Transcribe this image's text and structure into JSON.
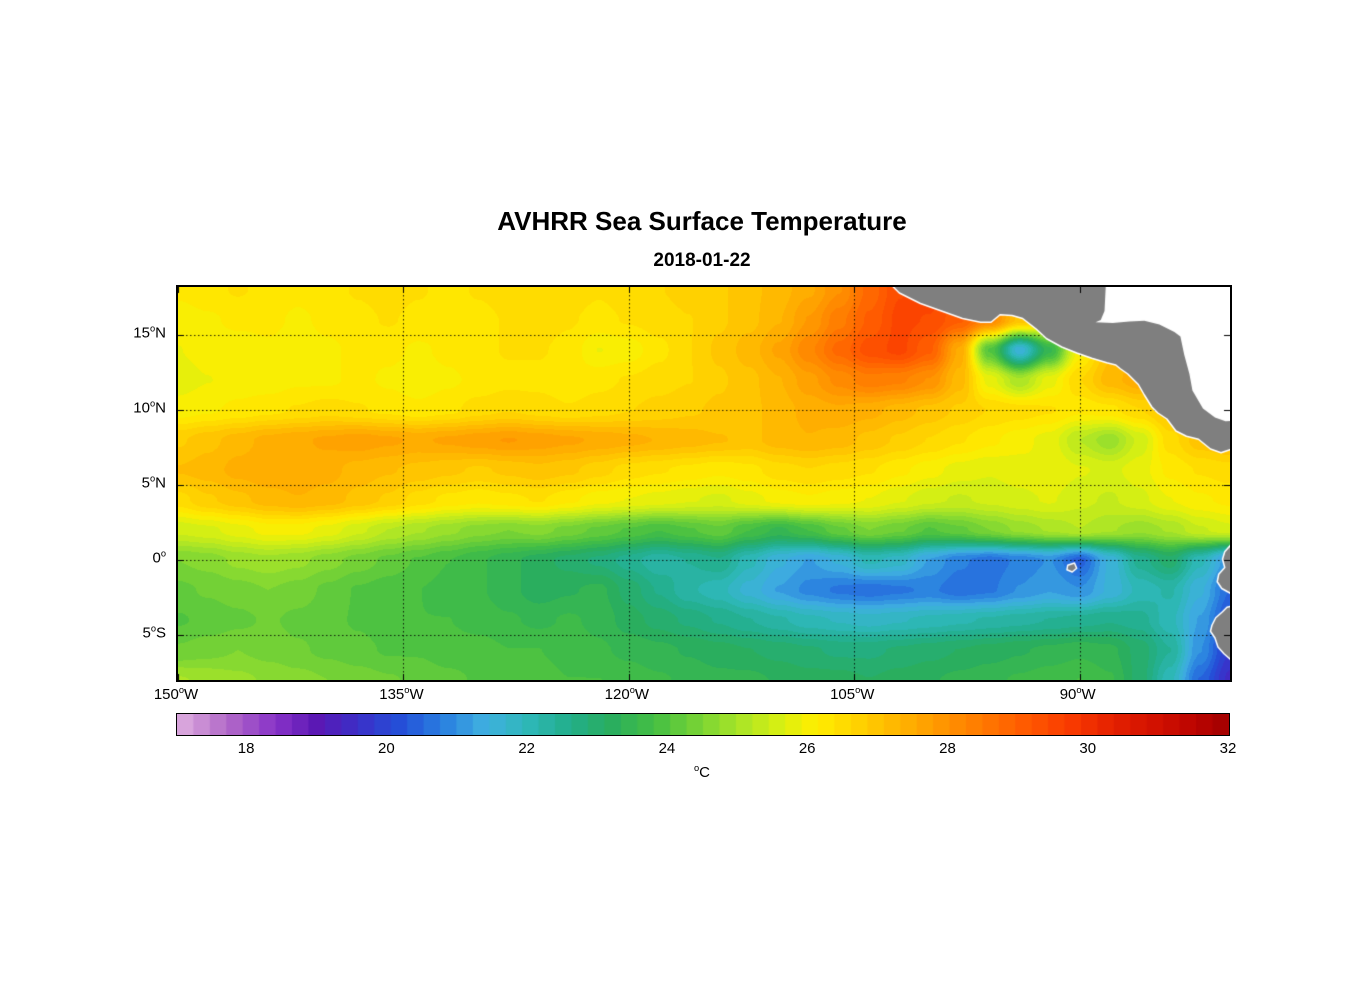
{
  "chart_data": {
    "type": "heatmap",
    "title": "AVHRR Sea Surface Temperature",
    "subtitle": "2018-01-22",
    "lon_range": [
      -150,
      -80
    ],
    "lat_range": [
      -8,
      18.2
    ],
    "x_ticks": [
      {
        "lon": -150,
        "label": "150°W"
      },
      {
        "lon": -135,
        "label": "135°W"
      },
      {
        "lon": -120,
        "label": "120°W"
      },
      {
        "lon": -105,
        "label": "105°W"
      },
      {
        "lon": -90,
        "label": "90°W"
      }
    ],
    "y_ticks": [
      {
        "lat": 15,
        "label": "15°N"
      },
      {
        "lat": 10,
        "label": "10°N"
      },
      {
        "lat": 5,
        "label": "5°N"
      },
      {
        "lat": 0,
        "label": "0°"
      },
      {
        "lat": -5,
        "label": "5°S"
      }
    ],
    "gridline_lats": [
      15,
      10,
      5,
      0,
      -5
    ],
    "gridline_lons": [
      -135,
      -120,
      -105,
      -90
    ],
    "grid_style": "dotted",
    "land_color": "#7F7F7F",
    "coast_color": "#FFFFFF",
    "sea_mask_color": "#FFFFFF",
    "colorbar": {
      "min": 17,
      "max": 32,
      "levels": 64,
      "ticks": [
        18,
        20,
        22,
        24,
        26,
        28,
        30,
        32
      ],
      "unit": "°C",
      "stops": [
        [
          17.0,
          "#E0B0E0"
        ],
        [
          17.7,
          "#B36BC8"
        ],
        [
          18.4,
          "#8833C8"
        ],
        [
          19.0,
          "#5A18B4"
        ],
        [
          19.6,
          "#3A30C8"
        ],
        [
          20.2,
          "#2450D8"
        ],
        [
          20.8,
          "#2A80E0"
        ],
        [
          21.4,
          "#3FB0E0"
        ],
        [
          22.0,
          "#2EB8B8"
        ],
        [
          22.6,
          "#22AE8A"
        ],
        [
          23.2,
          "#2AAE5E"
        ],
        [
          23.8,
          "#44BE44"
        ],
        [
          24.4,
          "#74D236"
        ],
        [
          25.0,
          "#A8E428"
        ],
        [
          25.6,
          "#D8F012"
        ],
        [
          26.1,
          "#FFEE00"
        ],
        [
          26.7,
          "#FFD200"
        ],
        [
          27.3,
          "#FFB400"
        ],
        [
          27.9,
          "#FF9600"
        ],
        [
          28.5,
          "#FF7800"
        ],
        [
          29.1,
          "#FF5A00"
        ],
        [
          29.7,
          "#FA3C00"
        ],
        [
          30.3,
          "#E62200"
        ],
        [
          31.0,
          "#D01000"
        ],
        [
          31.5,
          "#BC0400"
        ],
        [
          32.0,
          "#A00000"
        ]
      ]
    },
    "grid": {
      "lon_start": -150,
      "lon_step": 2,
      "lat_start": 18,
      "lat_step": -2,
      "lats_order": "north-to-south",
      "sst_c": [
        [
          26.2,
          26.3,
          26.4,
          26.3,
          26.2,
          26.3,
          26.4,
          26.5,
          26.4,
          26.3,
          26.4,
          26.5,
          26.6,
          26.5,
          26.4,
          26.5,
          26.6,
          26.7,
          26.8,
          27.0,
          27.2,
          27.5,
          28.0,
          28.8,
          29.4,
          29.6,
          29.3,
          28.8,
          28.2,
          27.8,
          27.5,
          27.3,
          27.2,
          27.0,
          26.8,
          26.6
        ],
        [
          26.0,
          26.1,
          26.2,
          26.2,
          26.1,
          26.2,
          26.3,
          26.4,
          26.3,
          26.2,
          26.3,
          26.4,
          26.5,
          26.4,
          26.3,
          26.4,
          26.5,
          26.6,
          26.8,
          27.0,
          27.3,
          27.8,
          28.4,
          29.0,
          29.5,
          29.4,
          29.0,
          28.2,
          27.0,
          26.5,
          26.8,
          27.0,
          27.2,
          27.0,
          26.8,
          26.6
        ],
        [
          25.9,
          26.0,
          26.0,
          26.1,
          26.0,
          26.1,
          26.2,
          26.2,
          26.1,
          26.2,
          26.3,
          26.4,
          26.4,
          26.3,
          25.9,
          26.0,
          26.3,
          26.6,
          26.9,
          27.2,
          27.6,
          28.2,
          28.8,
          29.3,
          29.5,
          29.0,
          27.5,
          24.0,
          21.5,
          23.5,
          26.0,
          27.0,
          27.3,
          27.2,
          27.0,
          26.8
        ],
        [
          25.8,
          25.9,
          26.0,
          26.0,
          26.1,
          26.1,
          26.2,
          26.1,
          26.0,
          26.1,
          26.2,
          26.3,
          26.3,
          26.2,
          26.3,
          26.4,
          26.5,
          26.6,
          26.8,
          27.0,
          27.3,
          27.7,
          28.1,
          28.4,
          28.3,
          28.0,
          27.2,
          25.8,
          25.0,
          25.8,
          26.6,
          27.2,
          27.5,
          27.4,
          27.2,
          27.0
        ],
        [
          26.0,
          26.1,
          26.2,
          26.3,
          26.4,
          26.5,
          26.4,
          26.3,
          26.2,
          26.3,
          26.5,
          26.6,
          26.5,
          26.4,
          26.5,
          26.6,
          26.7,
          26.8,
          26.9,
          27.0,
          27.2,
          27.4,
          27.5,
          27.4,
          27.2,
          27.0,
          26.8,
          26.6,
          26.5,
          26.4,
          26.2,
          26.3,
          26.6,
          27.0,
          27.3,
          27.5
        ],
        [
          26.8,
          27.0,
          27.2,
          27.4,
          27.5,
          27.6,
          27.7,
          27.6,
          27.5,
          27.6,
          27.7,
          27.8,
          27.7,
          27.6,
          27.5,
          27.4,
          27.3,
          27.2,
          27.1,
          27.0,
          27.2,
          27.3,
          27.2,
          27.0,
          26.8,
          26.6,
          26.4,
          26.2,
          26.0,
          25.8,
          25.2,
          24.8,
          25.5,
          26.5,
          27.0,
          27.2
        ],
        [
          27.1,
          27.2,
          27.4,
          27.5,
          27.5,
          27.4,
          27.2,
          27.1,
          27.0,
          26.9,
          26.8,
          26.9,
          27.0,
          26.9,
          26.7,
          26.5,
          26.4,
          26.3,
          26.2,
          26.3,
          26.5,
          26.6,
          26.5,
          26.4,
          26.2,
          26.0,
          25.8,
          25.7,
          25.8,
          25.9,
          25.7,
          25.6,
          25.8,
          26.2,
          26.4,
          26.5
        ],
        [
          26.5,
          26.8,
          27.0,
          27.2,
          27.3,
          27.2,
          27.0,
          26.8,
          26.5,
          26.3,
          26.2,
          26.3,
          26.4,
          26.2,
          26.0,
          25.9,
          25.8,
          25.7,
          25.6,
          25.8,
          26.0,
          26.1,
          26.0,
          25.9,
          25.7,
          25.5,
          25.4,
          25.5,
          25.6,
          25.7,
          25.5,
          25.4,
          25.6,
          25.9,
          26.1,
          26.2
        ],
        [
          25.5,
          25.6,
          25.8,
          26.0,
          26.0,
          25.8,
          25.5,
          25.2,
          25.0,
          24.8,
          24.6,
          24.5,
          24.6,
          24.4,
          24.2,
          24.0,
          23.8,
          24.0,
          24.2,
          23.8,
          23.5,
          23.8,
          24.2,
          24.5,
          24.3,
          24.0,
          24.2,
          24.5,
          24.8,
          25.0,
          25.2,
          25.0,
          24.8,
          25.0,
          25.4,
          25.6
        ],
        [
          24.5,
          24.6,
          24.8,
          24.9,
          24.8,
          24.6,
          24.4,
          24.2,
          24.0,
          23.8,
          23.6,
          23.4,
          23.2,
          23.0,
          22.8,
          22.5,
          22.2,
          22.4,
          22.6,
          22.0,
          21.5,
          21.2,
          21.5,
          22.0,
          21.8,
          21.2,
          20.8,
          20.6,
          20.8,
          21.0,
          20.4,
          21.5,
          22.5,
          23.0,
          22.0,
          21.0
        ],
        [
          24.2,
          24.3,
          24.4,
          24.5,
          24.4,
          24.2,
          24.0,
          23.9,
          23.8,
          23.7,
          23.6,
          23.4,
          23.2,
          23.3,
          23.4,
          23.0,
          22.6,
          22.2,
          22.0,
          21.6,
          21.2,
          20.9,
          20.7,
          20.6,
          20.7,
          20.8,
          20.6,
          20.7,
          21.0,
          21.2,
          21.0,
          21.5,
          22.0,
          22.2,
          21.5,
          20.5
        ],
        [
          24.0,
          24.1,
          24.2,
          24.3,
          24.2,
          24.1,
          24.0,
          23.9,
          23.8,
          23.8,
          23.7,
          23.6,
          23.5,
          23.6,
          23.5,
          23.2,
          23.0,
          22.8,
          22.6,
          22.4,
          22.2,
          22.0,
          21.9,
          21.8,
          21.9,
          22.0,
          22.1,
          22.2,
          22.3,
          22.4,
          22.5,
          22.6,
          22.5,
          22.0,
          21.2,
          20.2
        ],
        [
          24.3,
          24.4,
          24.5,
          24.4,
          24.3,
          24.2,
          24.1,
          24.0,
          24.0,
          23.9,
          23.9,
          23.8,
          23.8,
          23.7,
          23.6,
          23.5,
          23.4,
          23.3,
          23.2,
          23.1,
          23.0,
          22.9,
          22.8,
          22.8,
          22.9,
          23.0,
          23.1,
          23.2,
          23.3,
          23.4,
          23.5,
          23.4,
          23.0,
          22.4,
          21.0,
          19.8
        ],
        [
          25.0,
          24.9,
          24.8,
          24.7,
          24.6,
          24.5,
          24.4,
          24.3,
          24.2,
          24.1,
          24.0,
          23.9,
          23.9,
          23.8,
          23.8,
          23.7,
          23.6,
          23.5,
          23.4,
          23.4,
          23.3,
          23.2,
          23.2,
          23.1,
          23.2,
          23.3,
          23.4,
          23.5,
          23.6,
          23.7,
          23.8,
          23.6,
          23.0,
          22.0,
          20.5,
          19.5
        ]
      ]
    },
    "land_polygons": [
      {
        "name": "mexico-central-america",
        "type": "land",
        "points": [
          [
            -102.8,
            18.6
          ],
          [
            -102.0,
            17.8
          ],
          [
            -100.6,
            17.1
          ],
          [
            -99.2,
            16.6
          ],
          [
            -97.8,
            16.1
          ],
          [
            -96.6,
            15.85
          ],
          [
            -95.9,
            15.85
          ],
          [
            -95.3,
            16.35
          ],
          [
            -94.5,
            16.3
          ],
          [
            -93.8,
            16.1
          ],
          [
            -92.9,
            15.4
          ],
          [
            -92.2,
            14.75
          ],
          [
            -91.2,
            14.2
          ],
          [
            -90.2,
            13.8
          ],
          [
            -89.2,
            13.45
          ],
          [
            -88.2,
            13.15
          ],
          [
            -87.6,
            13.0
          ],
          [
            -87.3,
            12.75
          ],
          [
            -86.8,
            12.4
          ],
          [
            -86.1,
            11.7
          ],
          [
            -85.7,
            11.0
          ],
          [
            -85.2,
            10.2
          ],
          [
            -84.8,
            9.8
          ],
          [
            -84.2,
            9.4
          ],
          [
            -83.6,
            8.6
          ],
          [
            -82.9,
            8.25
          ],
          [
            -82.1,
            8.05
          ],
          [
            -81.3,
            7.4
          ],
          [
            -80.6,
            7.15
          ],
          [
            -80.0,
            7.35
          ],
          [
            -79.3,
            7.6
          ],
          [
            -78.8,
            8.2
          ],
          [
            -78.8,
            19.5
          ]
        ]
      },
      {
        "name": "caribbean-sea",
        "type": "sea-mask",
        "points": [
          [
            -88.25,
            18.6
          ],
          [
            -88.35,
            16.6
          ],
          [
            -88.6,
            16.0
          ],
          [
            -88.95,
            15.85
          ],
          [
            -87.8,
            15.8
          ],
          [
            -86.7,
            15.9
          ],
          [
            -85.7,
            15.95
          ],
          [
            -84.7,
            15.7
          ],
          [
            -83.7,
            15.2
          ],
          [
            -83.3,
            14.9
          ],
          [
            -83.05,
            13.7
          ],
          [
            -82.7,
            12.4
          ],
          [
            -82.5,
            11.3
          ],
          [
            -81.8,
            10.1
          ],
          [
            -81.0,
            9.5
          ],
          [
            -80.3,
            9.25
          ],
          [
            -79.6,
            9.3
          ],
          [
            -78.8,
            9.6
          ],
          [
            -78.8,
            19.5
          ]
        ]
      },
      {
        "name": "south-america",
        "type": "land",
        "points": [
          [
            -79.3,
            1.8
          ],
          [
            -80.0,
            0.95
          ],
          [
            -80.35,
            0.55
          ],
          [
            -80.5,
            0.05
          ],
          [
            -80.35,
            -0.5
          ],
          [
            -80.75,
            -0.95
          ],
          [
            -80.85,
            -1.45
          ],
          [
            -80.55,
            -1.9
          ],
          [
            -80.1,
            -2.15
          ],
          [
            -79.65,
            -2.4
          ],
          [
            -79.65,
            -3.0
          ],
          [
            -80.2,
            -3.15
          ],
          [
            -80.5,
            -3.45
          ],
          [
            -80.95,
            -3.85
          ],
          [
            -81.2,
            -4.35
          ],
          [
            -81.3,
            -4.75
          ],
          [
            -81.0,
            -5.2
          ],
          [
            -80.8,
            -5.8
          ],
          [
            -80.4,
            -6.25
          ],
          [
            -80.0,
            -6.6
          ],
          [
            -79.5,
            -7.1
          ],
          [
            -79.1,
            -7.9
          ],
          [
            -78.6,
            -9.0
          ],
          [
            -78.6,
            1.8
          ]
        ]
      },
      {
        "name": "galapagos-islands",
        "type": "land",
        "points": [
          [
            -90.8,
            -0.35
          ],
          [
            -90.35,
            -0.2
          ],
          [
            -90.2,
            -0.55
          ],
          [
            -90.5,
            -0.8
          ],
          [
            -90.85,
            -0.65
          ]
        ]
      }
    ]
  }
}
